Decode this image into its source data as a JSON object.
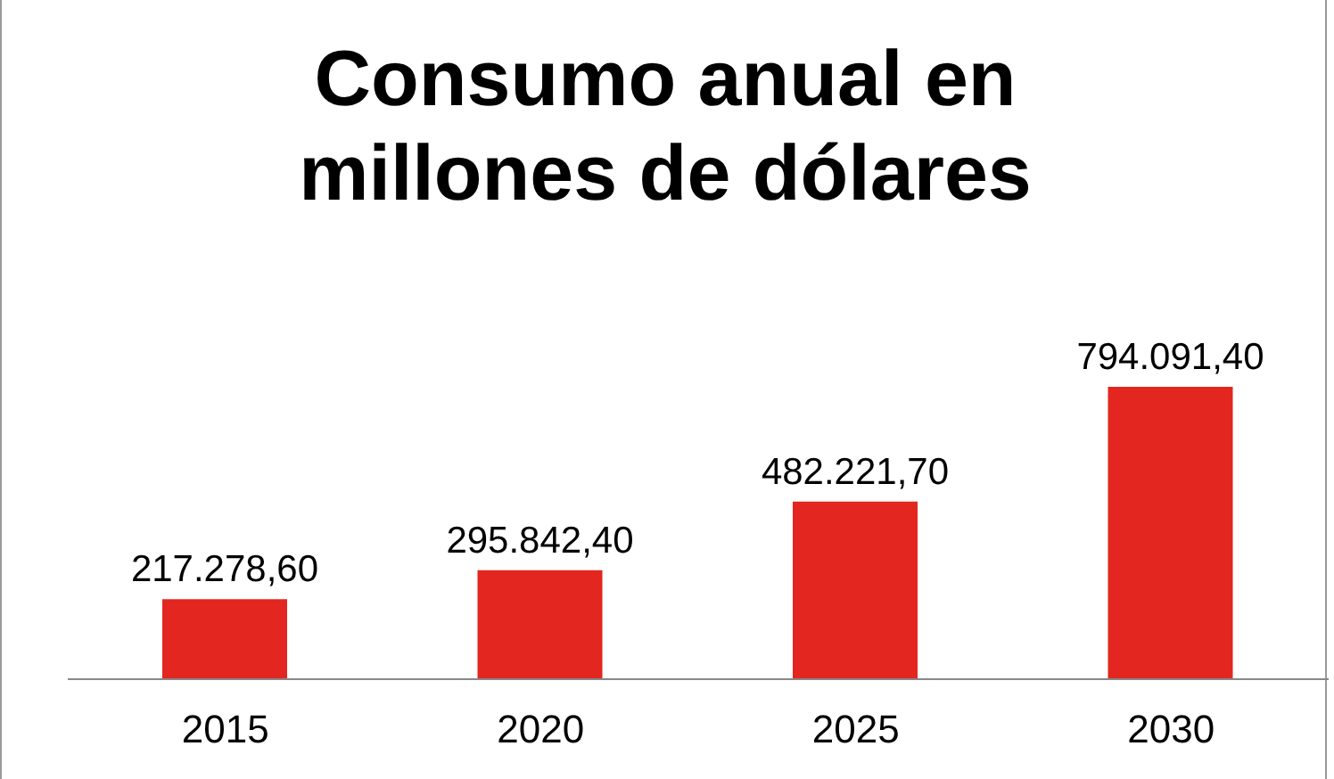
{
  "chart_data": {
    "type": "bar",
    "title": "Consumo anual en millones de dólares",
    "categories": [
      "2015",
      "2020",
      "2025",
      "2030"
    ],
    "values": [
      217278.6,
      295842.4,
      482221.7,
      794091.4
    ],
    "value_labels": [
      "217.278,60",
      "295.842,40",
      "482.221,70",
      "794.091,40"
    ],
    "color": "#e3261f",
    "grid": false,
    "legend": false
  }
}
